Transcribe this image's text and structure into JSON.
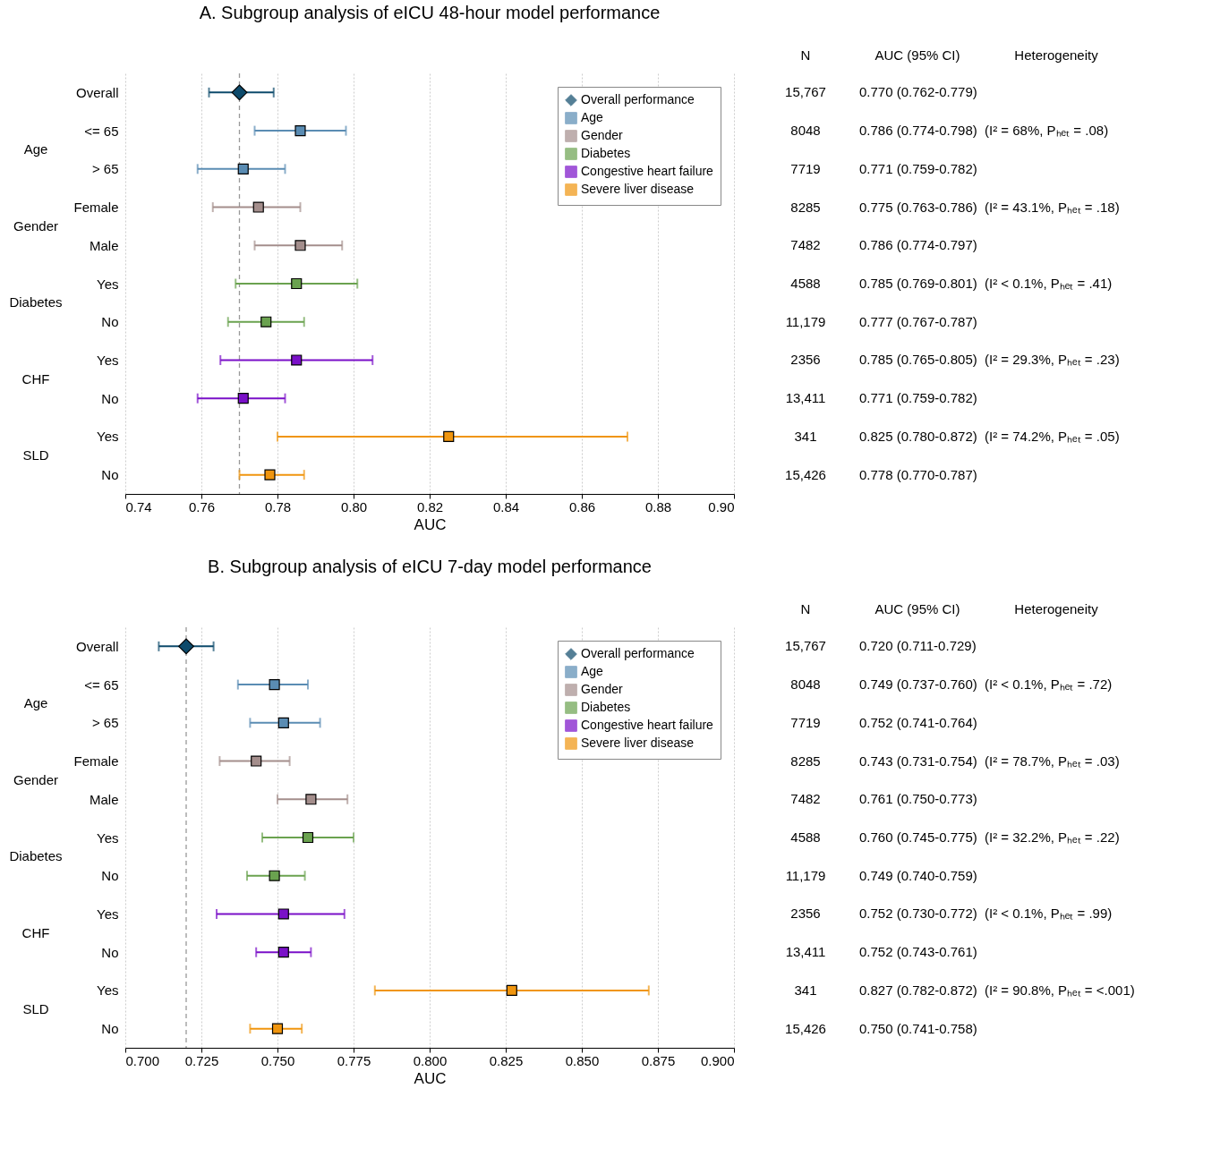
{
  "chart_data": [
    {
      "type": "scatter",
      "orientation": "horizontal",
      "title": "A. Subgroup analysis of eICU 48-hour model performance",
      "xlabel": "AUC",
      "categories": [
        "Overall",
        "<= 65",
        "> 65",
        "Female",
        "Male",
        "Yes",
        "No",
        "Yes",
        "No",
        "Yes",
        "No"
      ],
      "marker": "square",
      "grid": "x",
      "legend": "top right",
      "series": [
        {
          "name": "Overall performance",
          "color": "#0d4a6b",
          "marker": "diamond",
          "values": [
            0.77,
            null,
            null,
            null,
            null,
            null,
            null,
            null,
            null,
            null,
            null
          ],
          "errors": [
            [
              0.762,
              0.779
            ],
            null,
            null,
            null,
            null,
            null,
            null,
            null,
            null,
            null,
            null
          ]
        },
        {
          "name": "Age",
          "color": "#5a8cb3",
          "values": [
            null,
            0.786,
            0.771,
            null,
            null,
            null,
            null,
            null,
            null,
            null,
            null
          ],
          "errors": [
            null,
            [
              0.774,
              0.798
            ],
            [
              0.759,
              0.782
            ],
            null,
            null,
            null,
            null,
            null,
            null,
            null,
            null
          ]
        },
        {
          "name": "Gender",
          "color": "#a48e8c",
          "values": [
            null,
            null,
            null,
            0.775,
            0.786,
            null,
            null,
            null,
            null,
            null,
            null
          ],
          "errors": [
            null,
            null,
            null,
            [
              0.763,
              0.786
            ],
            [
              0.774,
              0.797
            ],
            null,
            null,
            null,
            null,
            null,
            null
          ]
        },
        {
          "name": "Diabetes",
          "color": "#6aa24f",
          "values": [
            null,
            null,
            null,
            null,
            null,
            0.785,
            0.777,
            null,
            null,
            null,
            null
          ],
          "errors": [
            null,
            null,
            null,
            null,
            null,
            [
              0.769,
              0.801
            ],
            [
              0.767,
              0.787
            ],
            null,
            null,
            null,
            null
          ]
        },
        {
          "name": "Congestive heart failure",
          "color": "#7a10c8",
          "values": [
            null,
            null,
            null,
            null,
            null,
            null,
            null,
            0.785,
            0.771,
            null,
            null
          ],
          "errors": [
            null,
            null,
            null,
            null,
            null,
            null,
            null,
            [
              0.765,
              0.805
            ],
            [
              0.759,
              0.782
            ],
            null,
            null
          ]
        },
        {
          "name": "Severe liver disease",
          "color": "#f0950e",
          "values": [
            null,
            null,
            null,
            null,
            null,
            null,
            null,
            null,
            null,
            0.825,
            0.778
          ],
          "errors": [
            null,
            null,
            null,
            null,
            null,
            null,
            null,
            null,
            null,
            [
              0.78,
              0.872
            ],
            [
              0.77,
              0.787
            ]
          ]
        }
      ],
      "xlim": [
        0.74,
        0.9
      ],
      "xticks": [
        {
          "value": 0.74,
          "label": "0.74"
        },
        {
          "value": 0.76,
          "label": "0.76"
        },
        {
          "value": 0.78,
          "label": "0.78"
        },
        {
          "value": 0.8,
          "label": "0.80"
        },
        {
          "value": 0.82,
          "label": "0.82"
        },
        {
          "value": 0.84,
          "label": "0.84"
        },
        {
          "value": 0.86,
          "label": "0.86"
        },
        {
          "value": 0.88,
          "label": "0.88"
        },
        {
          "value": 0.9,
          "label": "0.90"
        }
      ],
      "ref_lines": [
        {
          "axis": "x",
          "value": 0.77,
          "label": null,
          "color": "#999999",
          "line_style": "dashed"
        }
      ],
      "annotations": [
        "Age",
        "Gender",
        "Diabetes",
        "CHF",
        "SLD",
        "N",
        "AUC (95% CI)",
        "Heterogeneity",
        "15,767",
        "8048",
        "7719",
        "8285",
        "7482",
        "4588",
        "11,179",
        "2356",
        "13,411",
        "341",
        "15,426",
        "0.770 (0.762-0.779)",
        "0.786 (0.774-0.798)",
        "0.771 (0.759-0.782)",
        "0.775 (0.763-0.786)",
        "0.786 (0.774-0.797)",
        "0.785 (0.769-0.801)",
        "0.777 (0.767-0.787)",
        "0.785 (0.765-0.805)",
        "0.771 (0.759-0.782)",
        "0.825 (0.780-0.872)",
        "0.778 (0.770-0.787)",
        "(I² = 68%, Pₕₑₜ = .08)",
        "(I² = 43.1%, Pₕₑₜ = .18)",
        "(I² < 0.1%, Pₕₑₜ = .41)",
        "(I² = 29.3%, Pₕₑₜ = .23)",
        "(I² = 74.2%, Pₕₑₜ = .05)"
      ]
    },
    {
      "type": "scatter",
      "orientation": "horizontal",
      "title": "B. Subgroup analysis of eICU 7-day model performance",
      "xlabel": "AUC",
      "categories": [
        "Overall",
        "<= 65",
        "> 65",
        "Female",
        "Male",
        "Yes",
        "No",
        "Yes",
        "No",
        "Yes",
        "No"
      ],
      "marker": "square",
      "grid": "x",
      "legend": "top right",
      "series": [
        {
          "name": "Overall performance",
          "color": "#0d4a6b",
          "marker": "diamond",
          "values": [
            0.72,
            null,
            null,
            null,
            null,
            null,
            null,
            null,
            null,
            null,
            null
          ],
          "errors": [
            [
              0.711,
              0.729
            ],
            null,
            null,
            null,
            null,
            null,
            null,
            null,
            null,
            null,
            null
          ]
        },
        {
          "name": "Age",
          "color": "#5a8cb3",
          "values": [
            null,
            0.749,
            0.752,
            null,
            null,
            null,
            null,
            null,
            null,
            null,
            null
          ],
          "errors": [
            null,
            [
              0.737,
              0.76
            ],
            [
              0.741,
              0.764
            ],
            null,
            null,
            null,
            null,
            null,
            null,
            null,
            null
          ]
        },
        {
          "name": "Gender",
          "color": "#a48e8c",
          "values": [
            null,
            null,
            null,
            0.743,
            0.761,
            null,
            null,
            null,
            null,
            null,
            null
          ],
          "errors": [
            null,
            null,
            null,
            [
              0.731,
              0.754
            ],
            [
              0.75,
              0.773
            ],
            null,
            null,
            null,
            null,
            null,
            null
          ]
        },
        {
          "name": "Diabetes",
          "color": "#6aa24f",
          "values": [
            null,
            null,
            null,
            null,
            null,
            0.76,
            0.749,
            null,
            null,
            null,
            null
          ],
          "errors": [
            null,
            null,
            null,
            null,
            null,
            [
              0.745,
              0.775
            ],
            [
              0.74,
              0.759
            ],
            null,
            null,
            null,
            null
          ]
        },
        {
          "name": "Congestive heart failure",
          "color": "#7a10c8",
          "values": [
            null,
            null,
            null,
            null,
            null,
            null,
            null,
            0.752,
            0.752,
            null,
            null
          ],
          "errors": [
            null,
            null,
            null,
            null,
            null,
            null,
            null,
            [
              0.73,
              0.772
            ],
            [
              0.743,
              0.761
            ],
            null,
            null
          ]
        },
        {
          "name": "Severe liver disease",
          "color": "#f0950e",
          "values": [
            null,
            null,
            null,
            null,
            null,
            null,
            null,
            null,
            null,
            0.827,
            0.75
          ],
          "errors": [
            null,
            null,
            null,
            null,
            null,
            null,
            null,
            null,
            null,
            [
              0.782,
              0.872
            ],
            [
              0.741,
              0.758
            ]
          ]
        }
      ],
      "xlim": [
        0.7,
        0.9
      ],
      "xticks": [
        {
          "value": 0.7,
          "label": "0.700"
        },
        {
          "value": 0.725,
          "label": "0.725"
        },
        {
          "value": 0.75,
          "label": "0.750"
        },
        {
          "value": 0.775,
          "label": "0.775"
        },
        {
          "value": 0.8,
          "label": "0.800"
        },
        {
          "value": 0.825,
          "label": "0.825"
        },
        {
          "value": 0.85,
          "label": "0.850"
        },
        {
          "value": 0.875,
          "label": "0.875"
        },
        {
          "value": 0.9,
          "label": "0.900"
        }
      ],
      "ref_lines": [
        {
          "axis": "x",
          "value": 0.72,
          "label": null,
          "color": "#999999",
          "line_style": "dashed"
        }
      ],
      "annotations": [
        "Age",
        "Gender",
        "Diabetes",
        "CHF",
        "SLD",
        "N",
        "AUC (95% CI)",
        "Heterogeneity",
        "15,767",
        "8048",
        "7719",
        "8285",
        "7482",
        "4588",
        "11,179",
        "2356",
        "13,411",
        "341",
        "15,426",
        "0.720 (0.711-0.729)",
        "0.749 (0.737-0.760)",
        "0.752 (0.741-0.764)",
        "0.743 (0.731-0.754)",
        "0.761 (0.750-0.773)",
        "0.760 (0.745-0.775)",
        "0.749 (0.740-0.759)",
        "0.752 (0.730-0.772)",
        "0.752 (0.743-0.761)",
        "0.827 (0.782-0.872)",
        "0.750 (0.741-0.758)",
        "(I² < 0.1%, Pₕₑₜ = .72)",
        "(I² = 78.7%, Pₕₑₜ = .03)",
        "(I² = 32.2%, Pₕₑₜ = .22)",
        "(I² < 0.1%, Pₕₑₜ = .99)",
        "(I² = 90.8%, Pₕₑₜ = <.001)"
      ]
    }
  ]
}
